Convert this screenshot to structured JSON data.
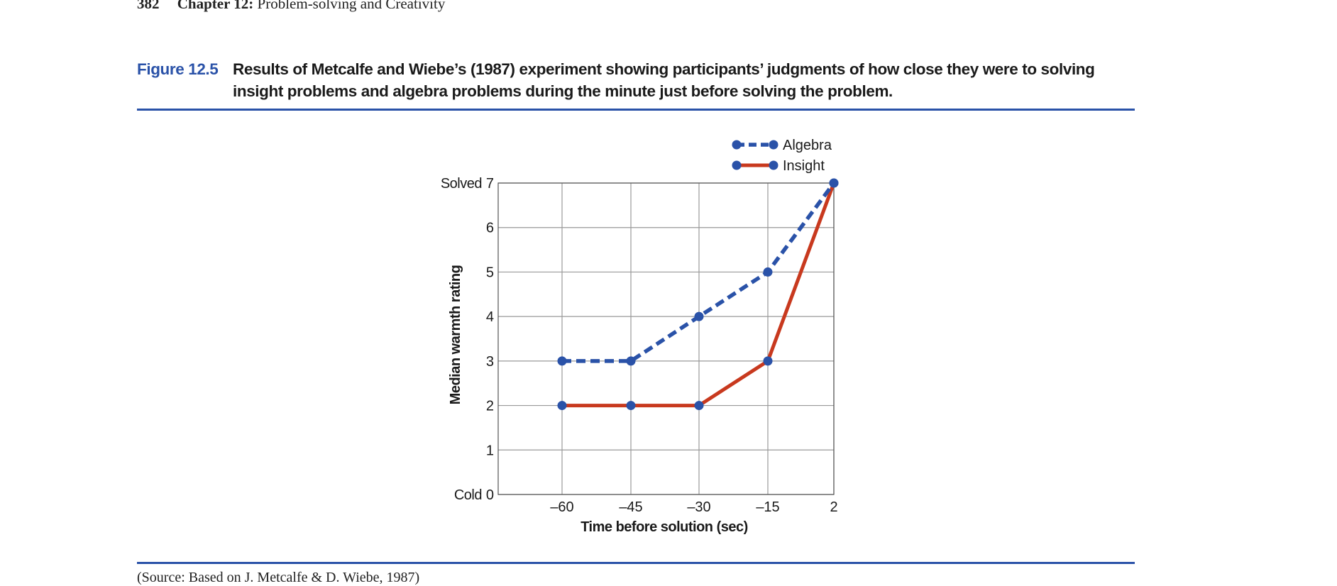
{
  "header": {
    "page_number": "382",
    "chapter_label": "Chapter 12:",
    "chapter_title": "Problem-solving and Creativity"
  },
  "figure": {
    "label": "Figure 12.5",
    "caption": "Results of Metcalfe and Wiebe’s (1987) experiment showing participants’ judgments of how close they were to solving insight problems and algebra problems during the minute just before solving the problem."
  },
  "source": "(Source: Based on J. Metcalfe & D. Wiebe, 1987)",
  "colors": {
    "accent": "#2a52a8",
    "algebra": "#2a52a8",
    "insight": "#c8391e",
    "marker": "#2a52a8",
    "grid": "#999999"
  },
  "chart_data": {
    "type": "line",
    "title": "",
    "xlabel": "Time before solution (sec)",
    "ylabel": "Median warmth rating",
    "x": [
      -60,
      -45,
      -30,
      -15,
      2
    ],
    "x_tick_labels": [
      "–60",
      "–45",
      "–30",
      "–15",
      "2"
    ],
    "ylim": [
      0,
      7
    ],
    "y_ticks": [
      0,
      1,
      2,
      3,
      4,
      5,
      6,
      7
    ],
    "y_tick_labels": [
      "0",
      "1",
      "2",
      "3",
      "4",
      "5",
      "6",
      "7"
    ],
    "y_annotations": [
      {
        "value": 7,
        "text": "Solved"
      },
      {
        "value": 0,
        "text": "Cold"
      }
    ],
    "grid": true,
    "legend_position": "top-right",
    "series": [
      {
        "name": "Algebra",
        "style": "dashed",
        "values": [
          3,
          3,
          4,
          5,
          7
        ]
      },
      {
        "name": "Insight",
        "style": "solid",
        "values": [
          2,
          2,
          2,
          3,
          7
        ]
      }
    ]
  }
}
